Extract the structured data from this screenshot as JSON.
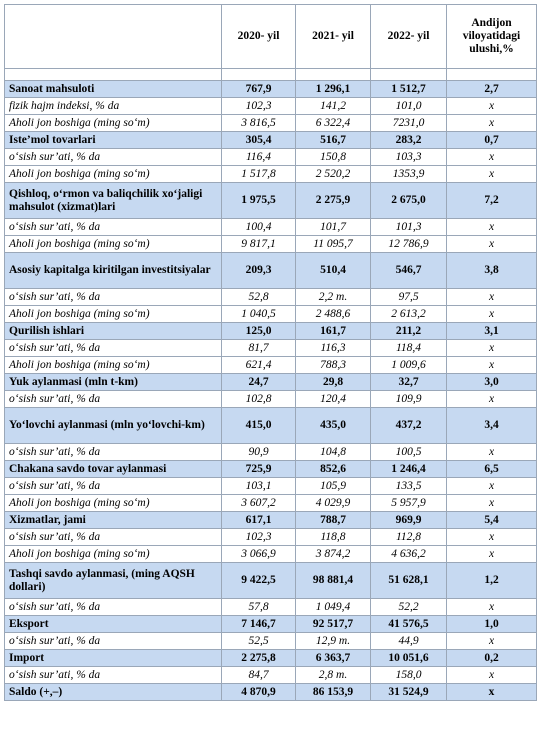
{
  "table": {
    "headers": [
      "",
      "2020- yil",
      "2021- yil",
      "2022- yil",
      "Andijon viloyatidagi ulushi,%"
    ],
    "rows": [
      {
        "type": "spacer",
        "cells": [
          "",
          "",
          "",
          "",
          ""
        ],
        "h": 12
      },
      {
        "type": "main",
        "cells": [
          "Sanoat mahsuloti",
          "767,9",
          "1 296,1",
          "1 512,7",
          "2,7"
        ],
        "h": 17
      },
      {
        "type": "sub",
        "cells": [
          "fizik hajm indeksi, % da",
          "102,3",
          "141,2",
          "101,0",
          "x"
        ],
        "h": 17
      },
      {
        "type": "sub",
        "cells": [
          "Aholi jon boshiga (ming so‘m)",
          "3 816,5",
          "6 322,4",
          "7231,0",
          "x"
        ],
        "h": 17
      },
      {
        "type": "main",
        "cells": [
          "Iste’mol tovarlari",
          "305,4",
          "516,7",
          "283,2",
          "0,7"
        ],
        "h": 17
      },
      {
        "type": "sub",
        "cells": [
          "o‘sish sur’ati, % da",
          "116,4",
          "150,8",
          "103,3",
          "x"
        ],
        "h": 17
      },
      {
        "type": "sub",
        "cells": [
          "Aholi jon boshiga (ming so‘m)",
          "1 517,8",
          "2 520,2",
          "1353,9",
          "x"
        ],
        "h": 17
      },
      {
        "type": "main",
        "cells": [
          "Qishloq, o‘rmon va baliqchilik xo‘jaligi mahsulot (xizmat)lari",
          "1 975,5",
          "2 275,9",
          "2 675,0",
          "7,2"
        ],
        "h": 36
      },
      {
        "type": "sub",
        "cells": [
          "o‘sish sur’ati, % da",
          "100,4",
          "101,7",
          "101,3",
          "x"
        ],
        "h": 17
      },
      {
        "type": "sub",
        "cells": [
          "Aholi jon boshiga (ming so‘m)",
          "9 817,1",
          "11 095,7",
          "12 786,9",
          "x"
        ],
        "h": 17
      },
      {
        "type": "main",
        "cells": [
          "Asosiy kapitalga kiritilgan investitsiyalar",
          "209,3",
          "510,4",
          "546,7",
          "3,8"
        ],
        "h": 36
      },
      {
        "type": "sub",
        "cells": [
          "o‘sish sur’ati, % da",
          "52,8",
          "2,2 m.",
          "97,5",
          "x"
        ],
        "h": 17
      },
      {
        "type": "sub",
        "cells": [
          "Aholi jon boshiga (ming so‘m)",
          "1 040,5",
          "2 488,6",
          "2 613,2",
          "x"
        ],
        "h": 17
      },
      {
        "type": "main",
        "cells": [
          "Qurilish ishlari",
          "125,0",
          "161,7",
          "211,2",
          "3,1"
        ],
        "h": 17
      },
      {
        "type": "sub",
        "cells": [
          "o‘sish sur’ati, % da",
          "81,7",
          "116,3",
          "118,4",
          "x"
        ],
        "h": 17
      },
      {
        "type": "sub",
        "cells": [
          "Aholi jon boshiga (ming so‘m)",
          "621,4",
          "788,3",
          "1 009,6",
          "x"
        ],
        "h": 17
      },
      {
        "type": "main",
        "cells": [
          "Yuk aylanmasi (mln t-km)",
          "24,7",
          "29,8",
          "32,7",
          "3,0"
        ],
        "h": 17
      },
      {
        "type": "sub",
        "cells": [
          "o‘sish sur’ati, % da",
          "102,8",
          "120,4",
          "109,9",
          "x"
        ],
        "h": 17
      },
      {
        "type": "main",
        "cells": [
          "Yo‘lovchi aylanmasi (mln yo‘lovchi-km)",
          "415,0",
          "435,0",
          "437,2",
          "3,4"
        ],
        "h": 36
      },
      {
        "type": "sub",
        "cells": [
          "o‘sish sur’ati, % da",
          "90,9",
          "104,8",
          "100,5",
          "x"
        ],
        "h": 17
      },
      {
        "type": "main",
        "cells": [
          "Chakana savdo tovar aylanmasi",
          "725,9",
          "852,6",
          "1 246,4",
          "6,5"
        ],
        "h": 17
      },
      {
        "type": "sub",
        "cells": [
          "o‘sish sur’ati, % da",
          "103,1",
          "105,9",
          "133,5",
          "x"
        ],
        "h": 17
      },
      {
        "type": "sub",
        "cells": [
          "Aholi jon boshiga (ming so‘m)",
          "3 607,2",
          "4 029,9",
          "5 957,9",
          "x"
        ],
        "h": 17
      },
      {
        "type": "main",
        "cells": [
          "Xizmatlar, jami",
          "617,1",
          "788,7",
          "969,9",
          "5,4"
        ],
        "h": 17
      },
      {
        "type": "sub",
        "cells": [
          "o‘sish sur’ati, % da",
          "102,3",
          "118,8",
          "112,8",
          "x"
        ],
        "h": 17
      },
      {
        "type": "sub",
        "cells": [
          "Aholi jon boshiga (ming so‘m)",
          "3 066,9",
          "3 874,2",
          "4 636,2",
          "x"
        ],
        "h": 17
      },
      {
        "type": "main",
        "cells": [
          "Tashqi savdo aylanmasi, (ming AQSH dollari)",
          "9 422,5",
          "98 881,4",
          "51 628,1",
          "1,2"
        ],
        "h": 36
      },
      {
        "type": "sub",
        "cells": [
          "o‘sish sur’ati, % da",
          "57,8",
          "1 049,4",
          "52,2",
          "x"
        ],
        "h": 17
      },
      {
        "type": "main",
        "cells": [
          "Eksport",
          "7 146,7",
          "92 517,7",
          "41 576,5",
          "1,0"
        ],
        "h": 17,
        "indent": true
      },
      {
        "type": "sub",
        "cells": [
          "o‘sish sur’ati, % da",
          "52,5",
          "12,9 m.",
          "44,9",
          "x"
        ],
        "h": 17
      },
      {
        "type": "main",
        "cells": [
          "Import",
          "2 275,8",
          "6 363,7",
          "10 051,6",
          "0,2"
        ],
        "h": 17,
        "indent": true
      },
      {
        "type": "sub",
        "cells": [
          "o‘sish sur’ati, % da",
          "84,7",
          "2,8 m.",
          "158,0",
          "x"
        ],
        "h": 17
      },
      {
        "type": "main",
        "cells": [
          "Saldo (+,–)",
          "4 870,9",
          "86 153,9",
          "31 524,9",
          "x"
        ],
        "h": 17
      }
    ]
  }
}
